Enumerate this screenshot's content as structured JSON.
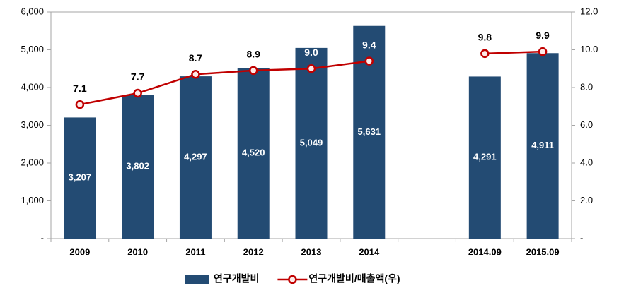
{
  "chart_data": {
    "type": "bar-line",
    "categories": [
      "2009",
      "2010",
      "2011",
      "2012",
      "2013",
      "2014",
      null,
      "2014.09",
      "2015.09"
    ],
    "series": [
      {
        "name": "연구개발비",
        "type": "bar",
        "color": "#234b73",
        "values": [
          3207,
          3802,
          4297,
          4520,
          5049,
          5631,
          null,
          4291,
          4911
        ],
        "value_labels": [
          "3,207",
          "3,802",
          "4,297",
          "4,520",
          "5,049",
          "5,631",
          null,
          "4,291",
          "4,911"
        ]
      },
      {
        "name": "연구개발비/매출액(우)",
        "type": "line",
        "axis": "y2",
        "color": "#c00000",
        "values": [
          7.1,
          7.7,
          8.7,
          8.9,
          9.0,
          9.4,
          null,
          9.8,
          9.9
        ],
        "value_labels": [
          "7.1",
          "7.7",
          "8.7",
          "8.9",
          "9.0",
          "9.4",
          null,
          "9.8",
          "9.9"
        ]
      }
    ],
    "ylim": [
      0,
      6000
    ],
    "yticks": [
      {
        "value": 0,
        "label": "-"
      },
      {
        "value": 1000,
        "label": "1,000"
      },
      {
        "value": 2000,
        "label": "2,000"
      },
      {
        "value": 3000,
        "label": "3,000"
      },
      {
        "value": 4000,
        "label": "4,000"
      },
      {
        "value": 5000,
        "label": "5,000"
      },
      {
        "value": 6000,
        "label": "6,000"
      }
    ],
    "y2lim": [
      0,
      12
    ],
    "y2ticks": [
      {
        "value": 0,
        "label": "-"
      },
      {
        "value": 2,
        "label": "2.0"
      },
      {
        "value": 4,
        "label": "4.0"
      },
      {
        "value": 6,
        "label": "6.0"
      },
      {
        "value": 8,
        "label": "8.0"
      },
      {
        "value": 10,
        "label": "10.0"
      },
      {
        "value": 12,
        "label": "12.0"
      }
    ],
    "legend": "bottom",
    "grid": false
  }
}
